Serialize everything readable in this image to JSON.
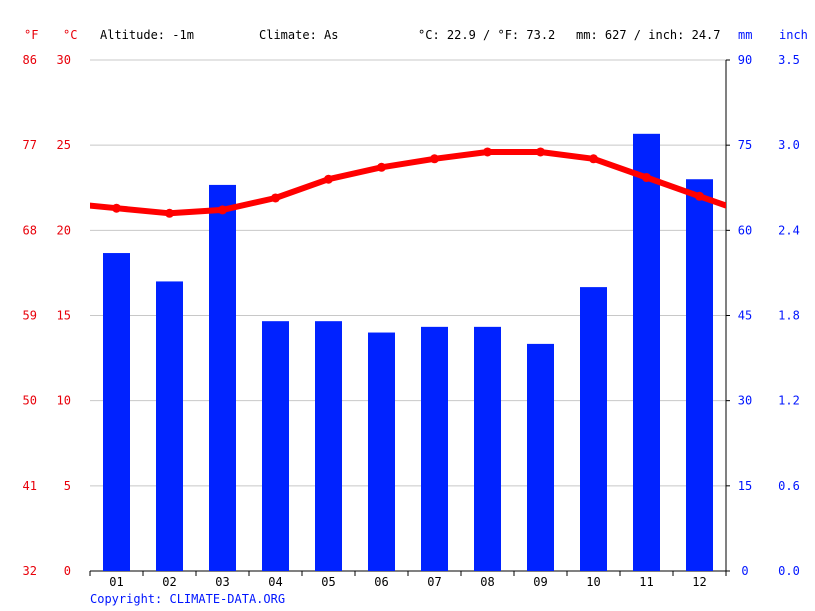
{
  "header": {
    "f_unit": "°F",
    "c_unit": "°C",
    "altitude": "Altitude: -1m",
    "climate": "Climate: As",
    "temp_summary": "°C: 22.9 / °F: 73.2",
    "precip_summary": "mm: 627 / inch: 24.7",
    "mm_unit": "mm",
    "inch_unit": "inch"
  },
  "copyright": "Copyright: CLIMATE-DATA.ORG",
  "colors": {
    "temperature": "#ff0000",
    "precipitation": "#0022ff",
    "left_axis_text": "#e8000a",
    "right_axis_text": "#0015ff",
    "grid": "#c8c8c8"
  },
  "chart_data": {
    "type": "bar",
    "categories": [
      "01",
      "02",
      "03",
      "04",
      "05",
      "06",
      "07",
      "08",
      "09",
      "10",
      "11",
      "12"
    ],
    "series": [
      {
        "type": "bar",
        "axis": "right",
        "values": [
          56,
          51,
          68,
          44,
          44,
          42,
          43,
          43,
          40,
          50,
          77,
          69
        ]
      },
      {
        "type": "line",
        "axis": "left",
        "values": [
          21.3,
          21.0,
          21.2,
          21.9,
          23.0,
          23.7,
          24.2,
          24.6,
          24.6,
          24.2,
          23.1,
          22.0
        ]
      }
    ],
    "y_left": {
      "unit": "°C",
      "ylim": [
        0,
        30
      ],
      "ticks": [
        0,
        5,
        10,
        15,
        20,
        25,
        30
      ]
    },
    "y_left_f": {
      "unit": "°F",
      "ticks": [
        "32",
        "41",
        "50",
        "59",
        "68",
        "77",
        "86"
      ]
    },
    "y_right": {
      "unit": "mm",
      "ylim": [
        0,
        90
      ],
      "ticks": [
        0,
        15,
        30,
        45,
        60,
        75,
        90
      ]
    },
    "y_right_inch": {
      "unit": "inch",
      "ticks": [
        "0.0",
        "0.6",
        "1.2",
        "1.8",
        "2.4",
        "3.0",
        "3.5"
      ]
    },
    "grid": true
  }
}
